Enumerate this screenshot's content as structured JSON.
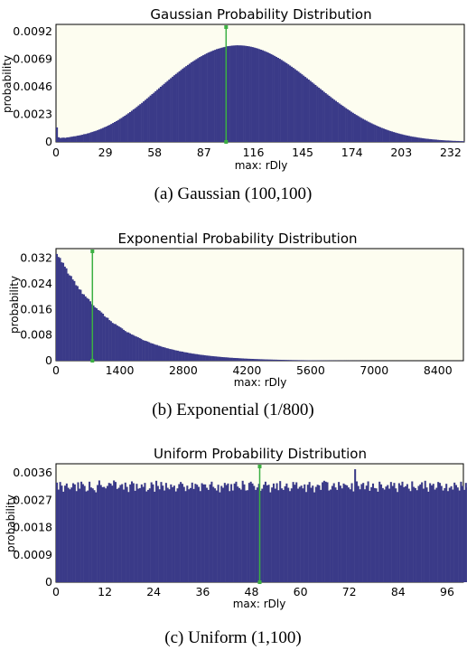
{
  "chart_data": [
    {
      "type": "bar",
      "title": "Gaussian Probability Distribution",
      "xlabel": "max: rDly",
      "ylabel": "probability",
      "caption": "(a) Gaussian (100,100)",
      "x_ticks": [
        "0",
        "29",
        "58",
        "87",
        "116",
        "145",
        "174",
        "203",
        "232"
      ],
      "y_ticks": [
        "0",
        "0.0023",
        "0.0046",
        "0.0069",
        "0.0092"
      ],
      "xlim": [
        0,
        240
      ],
      "ylim": [
        0,
        0.0098
      ],
      "bin_width": 1,
      "marker_x": 100,
      "values": [
        0.00121,
        0.00039,
        0.00033,
        0.00035,
        0.00036,
        0.00034,
        0.00038,
        0.00039,
        0.00042,
        0.00044,
        0.00047,
        0.00048,
        0.00052,
        0.00054,
        0.00057,
        0.0006,
        0.00065,
        0.00066,
        0.00071,
        0.00074,
        0.0008,
        0.00084,
        0.00089,
        0.00093,
        0.00099,
        0.00104,
        0.0011,
        0.00116,
        0.00123,
        0.00128,
        0.00136,
        0.00142,
        0.0015,
        0.00158,
        0.00166,
        0.00174,
        0.00182,
        0.00192,
        0.002,
        0.0021,
        0.00219,
        0.00229,
        0.00239,
        0.00249,
        0.0026,
        0.00271,
        0.00281,
        0.00292,
        0.00304,
        0.00315,
        0.00326,
        0.00338,
        0.0035,
        0.00362,
        0.00374,
        0.00387,
        0.00399,
        0.0041,
        0.00423,
        0.00435,
        0.00447,
        0.0046,
        0.00472,
        0.00484,
        0.00496,
        0.00508,
        0.0052,
        0.00532,
        0.00544,
        0.00556,
        0.00567,
        0.00578,
        0.00589,
        0.006,
        0.00612,
        0.00622,
        0.00632,
        0.00642,
        0.00652,
        0.00663,
        0.00672,
        0.00681,
        0.0069,
        0.00699,
        0.00708,
        0.00715,
        0.00723,
        0.0073,
        0.00738,
        0.00745,
        0.00751,
        0.00757,
        0.00763,
        0.00768,
        0.00774,
        0.00778,
        0.00782,
        0.00786,
        0.0079,
        0.00793,
        0.00798,
        0.00799,
        0.00801,
        0.00803,
        0.00804,
        0.00805,
        0.00806,
        0.00805,
        0.00805,
        0.00804,
        0.00803,
        0.00801,
        0.00799,
        0.00797,
        0.00794,
        0.00791,
        0.00787,
        0.00783,
        0.00779,
        0.00774,
        0.00769,
        0.00764,
        0.00758,
        0.00752,
        0.00746,
        0.00739,
        0.00732,
        0.00725,
        0.00717,
        0.00709,
        0.00701,
        0.00693,
        0.00684,
        0.00675,
        0.00666,
        0.00657,
        0.00647,
        0.00637,
        0.00627,
        0.00617,
        0.00607,
        0.00596,
        0.00586,
        0.00575,
        0.00564,
        0.00553,
        0.00542,
        0.00531,
        0.0052,
        0.00509,
        0.00497,
        0.00486,
        0.00475,
        0.00463,
        0.00452,
        0.00441,
        0.0043,
        0.00418,
        0.00407,
        0.00396,
        0.00385,
        0.00374,
        0.00363,
        0.00352,
        0.00342,
        0.00331,
        0.00321,
        0.00311,
        0.00301,
        0.00291,
        0.00281,
        0.00271,
        0.00262,
        0.00252,
        0.00243,
        0.00234,
        0.00225,
        0.00217,
        0.00208,
        0.002,
        0.00192,
        0.00184,
        0.00177,
        0.00169,
        0.00162,
        0.00155,
        0.00148,
        0.00142,
        0.00135,
        0.00129,
        0.00123,
        0.00117,
        0.00112,
        0.00106,
        0.00101,
        0.00096,
        0.00091,
        0.00087,
        0.00082,
        0.00078,
        0.00074,
        0.0007,
        0.00066,
        0.00063,
        0.00059,
        0.00056,
        0.00053,
        0.0005,
        0.00047,
        0.00044,
        0.00042,
        0.0004,
        0.00037,
        0.00035,
        0.00033,
        0.00031,
        0.00029,
        0.00027,
        0.00026,
        0.00024,
        0.00023,
        0.00021,
        0.0002,
        0.00019,
        0.00017,
        0.00016,
        0.00015,
        0.00014,
        0.00013,
        0.00012,
        0.00012,
        0.00011,
        0.0001,
        9e-05,
        9e-05,
        8e-05,
        8e-05,
        7e-05,
        7e-05,
        6e-05
      ]
    },
    {
      "type": "bar",
      "title": "Exponential Probability Distribution",
      "xlabel": "max: rDly",
      "ylabel": "probability",
      "caption": "(b) Exponential (1/800)",
      "x_ticks": [
        "0",
        "1400",
        "2800",
        "4200",
        "5600",
        "7000",
        "8400"
      ],
      "y_ticks": [
        "0",
        "0.008",
        "0.016",
        "0.024",
        "0.032"
      ],
      "xlim": [
        0,
        8960
      ],
      "ylim": [
        0,
        0.035
      ],
      "bin_width": 35,
      "marker_x": 800,
      "values": [
        0.03333,
        0.03241,
        0.0321,
        0.03072,
        0.03056,
        0.02938,
        0.02884,
        0.02721,
        0.02665,
        0.02643,
        0.02537,
        0.02488,
        0.02358,
        0.0233,
        0.02231,
        0.02215,
        0.02085,
        0.02071,
        0.02009,
        0.01958,
        0.01926,
        0.01856,
        0.01766,
        0.01727,
        0.01669,
        0.01637,
        0.01583,
        0.0156,
        0.01509,
        0.01468,
        0.01389,
        0.01351,
        0.01338,
        0.01268,
        0.01234,
        0.01182,
        0.01151,
        0.01141,
        0.01098,
        0.0107,
        0.0104,
        0.01007,
        0.00962,
        0.00928,
        0.00891,
        0.00883,
        0.00853,
        0.00821,
        0.00804,
        0.00773,
        0.00754,
        0.00732,
        0.00708,
        0.00682,
        0.00646,
        0.00629,
        0.00618,
        0.00599,
        0.00577,
        0.0055,
        0.00539,
        0.0052,
        0.00499,
        0.0049,
        0.00468,
        0.00457,
        0.00435,
        0.00423,
        0.0041,
        0.00392,
        0.00383,
        0.00365,
        0.00358,
        0.00346,
        0.00331,
        0.0032,
        0.00313,
        0.00296,
        0.00289,
        0.00283,
        0.00267,
        0.00262,
        0.00254,
        0.00239,
        0.00235,
        0.00223,
        0.00219,
        0.00209,
        0.00205,
        0.00195,
        0.00187,
        0.00182,
        0.00177,
        0.0017,
        0.00163,
        0.00158,
        0.00153,
        0.00146,
        0.00143,
        0.00137,
        0.00133,
        0.00127,
        0.00123,
        0.00118,
        0.00113,
        0.00109,
        0.00106,
        0.00103,
        0.00098,
        0.00093,
        0.00092,
        0.00087,
        0.00085,
        0.00083,
        0.0008,
        0.00076,
        0.00073,
        0.00071,
        0.00067,
        0.00066,
        0.00062,
        0.0006,
        0.00058,
        0.00057,
        0.00054,
        0.00052,
        0.0005,
        0.00048,
        0.00046,
        0.00045,
        0.00043,
        0.00041,
        0.0004,
        0.00038,
        0.00037,
        0.00036,
        0.00034,
        0.00033,
        0.00032,
        0.0003,
        0.00029,
        0.00028,
        0.00027,
        0.00026,
        0.00025,
        0.00024,
        0.00023,
        0.00022,
        0.00021,
        0.0002,
        0.0002,
        0.00019,
        0.00018,
        0.00017,
        0.00017,
        0.00016,
        0.00015,
        0.00015,
        0.00014,
        0.00014,
        0.00013,
        0.00012,
        0.00012,
        0.00012,
        0.00011,
        0.00011,
        0.0001,
        0.0001,
        9e-05,
        9e-05,
        9e-05,
        8e-05,
        8e-05,
        8e-05,
        7e-05,
        7e-05,
        7e-05,
        6e-05,
        6e-05,
        6e-05,
        6e-05,
        5e-05,
        5e-05,
        5e-05,
        5e-05,
        4e-05,
        4e-05,
        4e-05,
        4e-05,
        4e-05,
        4e-05,
        3e-05,
        3e-05,
        3e-05,
        3e-05,
        3e-05,
        3e-05,
        3e-05,
        2e-05,
        2e-05,
        2e-05,
        2e-05,
        2e-05,
        2e-05,
        2e-05,
        2e-05,
        2e-05,
        2e-05,
        2e-05,
        1e-05,
        1e-05,
        1e-05,
        1e-05,
        1e-05,
        1e-05,
        1e-05,
        1e-05,
        1e-05,
        1e-05,
        1e-05,
        1e-05,
        1e-05,
        1e-05,
        1e-05,
        1e-05,
        1e-05,
        1e-05,
        1e-05,
        1e-05,
        1e-05,
        1e-05,
        1e-05,
        1e-05,
        1e-05,
        1e-05,
        1e-05,
        1e-05,
        1e-05,
        1e-05,
        1e-05,
        1e-05,
        1e-05,
        1e-05,
        1e-05,
        1e-05,
        1e-05,
        1e-05,
        1e-05,
        1e-05,
        1e-05,
        1e-05,
        1e-05,
        1e-05,
        1e-05,
        1e-05,
        1e-05
      ]
    },
    {
      "type": "bar",
      "title": "Uniform Probability Distribution",
      "xlabel": "max: rDly",
      "ylabel": "probability",
      "caption": "(c) Uniform (1,100)",
      "x_ticks": [
        "0",
        "12",
        "24",
        "36",
        "48",
        "60",
        "72",
        "84",
        "96"
      ],
      "y_ticks": [
        "0",
        "0.0009",
        "0.0018",
        "0.0027",
        "0.0036"
      ],
      "xlim": [
        0,
        100
      ],
      "ylim": [
        0,
        0.0039
      ],
      "bin_width": 0.4,
      "marker_x": 50,
      "values": [
        0.00328,
        0.00305,
        0.0033,
        0.00318,
        0.00298,
        0.00318,
        0.00325,
        0.00311,
        0.00306,
        0.00312,
        0.00326,
        0.00322,
        0.003,
        0.00329,
        0.00308,
        0.00331,
        0.00323,
        0.00317,
        0.00299,
        0.00302,
        0.00331,
        0.00312,
        0.00309,
        0.00303,
        0.00296,
        0.0032,
        0.00335,
        0.0032,
        0.00313,
        0.00314,
        0.00309,
        0.00317,
        0.00327,
        0.00325,
        0.00318,
        0.00335,
        0.0033,
        0.00307,
        0.00311,
        0.0032,
        0.00323,
        0.00305,
        0.00328,
        0.00314,
        0.00297,
        0.00322,
        0.00332,
        0.00326,
        0.00301,
        0.00324,
        0.00308,
        0.0031,
        0.00322,
        0.00314,
        0.00327,
        0.00299,
        0.00304,
        0.00309,
        0.00329,
        0.00322,
        0.00298,
        0.00334,
        0.00317,
        0.00306,
        0.0033,
        0.00318,
        0.00302,
        0.00327,
        0.00311,
        0.00306,
        0.00322,
        0.00313,
        0.00318,
        0.00299,
        0.00309,
        0.00323,
        0.0033,
        0.00324,
        0.00314,
        0.003,
        0.00318,
        0.00306,
        0.0031,
        0.00328,
        0.00307,
        0.00324,
        0.00321,
        0.00314,
        0.003,
        0.00326,
        0.00322,
        0.00322,
        0.00311,
        0.00304,
        0.00322,
        0.00331,
        0.00314,
        0.00309,
        0.00302,
        0.00321,
        0.00296,
        0.00317,
        0.00311,
        0.00327,
        0.0032,
        0.00325,
        0.003,
        0.00323,
        0.00302,
        0.00325,
        0.00331,
        0.00315,
        0.0031,
        0.00305,
        0.00334,
        0.00322,
        0.00302,
        0.00303,
        0.00327,
        0.00331,
        0.00325,
        0.00317,
        0.00304,
        0.00312,
        0.00324,
        0.00301,
        0.00308,
        0.00321,
        0.00331,
        0.00319,
        0.00321,
        0.00296,
        0.00312,
        0.00325,
        0.00308,
        0.00326,
        0.00303,
        0.00333,
        0.00309,
        0.00304,
        0.00316,
        0.00325,
        0.00311,
        0.003,
        0.00309,
        0.0033,
        0.00321,
        0.00329,
        0.00308,
        0.00314,
        0.00318,
        0.00309,
        0.00322,
        0.00297,
        0.00321,
        0.0033,
        0.00311,
        0.00318,
        0.00296,
        0.00314,
        0.00321,
        0.00319,
        0.00304,
        0.00329,
        0.00334,
        0.00331,
        0.00329,
        0.00302,
        0.00305,
        0.00317,
        0.00326,
        0.00312,
        0.00304,
        0.0033,
        0.00318,
        0.00309,
        0.00325,
        0.00321,
        0.00319,
        0.00312,
        0.00306,
        0.00326,
        0.00299,
        0.00372,
        0.00332,
        0.00317,
        0.00306,
        0.00323,
        0.00327,
        0.00306,
        0.00318,
        0.00332,
        0.00301,
        0.00313,
        0.00325,
        0.0031,
        0.00309,
        0.00298,
        0.00331,
        0.00322,
        0.0031,
        0.00305,
        0.00315,
        0.0032,
        0.00308,
        0.0033,
        0.00317,
        0.00327,
        0.00309,
        0.00297,
        0.00326,
        0.00319,
        0.00331,
        0.00313,
        0.00316,
        0.00323,
        0.00308,
        0.003,
        0.00332,
        0.00314,
        0.0031,
        0.00303,
        0.00317,
        0.00322,
        0.00329,
        0.00308,
        0.00334,
        0.00312,
        0.00298,
        0.00326,
        0.00319,
        0.00324,
        0.00305,
        0.00311,
        0.0033,
        0.00327,
        0.00317,
        0.00302,
        0.0031,
        0.00324,
        0.003,
        0.00311,
        0.00316,
        0.00305,
        0.00328,
        0.0032,
        0.00312,
        0.00302,
        0.00331,
        0.00317,
        0.00304,
        0.00327,
        0.00312
      ]
    }
  ],
  "colors": {
    "bar": "#3a3a88",
    "marker": "#3cb043",
    "plot_bg": "#fdfdf0",
    "axis": "#000000"
  }
}
